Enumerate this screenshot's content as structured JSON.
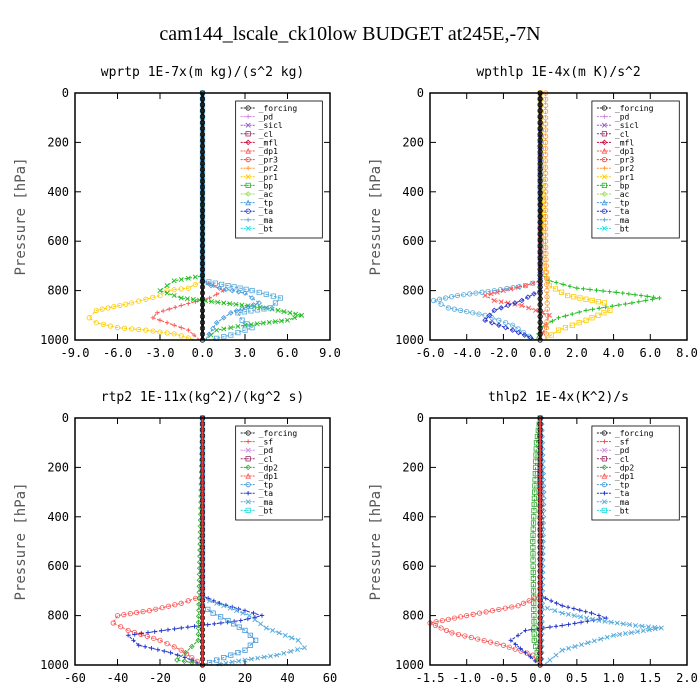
{
  "title": "cam144_lscale_ck10low  BUDGET at245E,-7N",
  "colors": {
    "_forcing": "#222222",
    "_pd": "#cc88dd",
    "_sicl": "#9955cc",
    "_cl": "#993366",
    "_mfl": "#cc0033",
    "_dp1": "#ff5555",
    "_pr3": "#ee4444",
    "_pr2": "#ff9933",
    "_pr1": "#ffcc00",
    "_bp": "#22bb22",
    "_ac": "#99dd55",
    "_tp": "#4499dd",
    "_ta": "#2233cc",
    "_ma": "#55aadd",
    "_bt": "#22dddd",
    "_sf": "#ff4444",
    "_dp2": "#33aa33"
  },
  "chart_data": [
    {
      "type": "line",
      "title": "wprtp  1E-7x(m kg)/(s^2 kg)",
      "ylabel": "Pressure [hPa]",
      "xlim": [
        -9,
        9
      ],
      "ylim": [
        1000,
        0
      ],
      "xticks": [
        "-9.0",
        "-6.0",
        "-3.0",
        "0.0",
        "3.0",
        "6.0",
        "9.0"
      ],
      "yticks": [
        "0",
        "200",
        "400",
        "600",
        "800",
        "1000"
      ],
      "legend": [
        "_forcing",
        "_pd",
        "_sicl",
        "_cl",
        "_mfl",
        "_dp1",
        "_pr3",
        "_pr2",
        "_pr1",
        "_bp",
        "_ac",
        "_tp",
        "_ta",
        "_ma",
        "_bt"
      ],
      "series": [
        {
          "name": "_pr1",
          "x": [
            0,
            0,
            -1.0,
            -2.5,
            -3.0,
            -5.0,
            -7.5,
            -8.0,
            -7.5,
            -6.0,
            -4.0,
            -2.0,
            -0.5
          ],
          "y": [
            0,
            760,
            790,
            800,
            820,
            850,
            880,
            910,
            930,
            950,
            960,
            975,
            1000
          ]
        },
        {
          "name": "_dp1",
          "x": [
            0,
            0,
            0.8,
            1.5,
            0.5,
            -1.5,
            -3.2,
            -3.5,
            -2.5,
            -1.0,
            -0.2
          ],
          "y": [
            0,
            760,
            780,
            800,
            830,
            860,
            890,
            910,
            930,
            960,
            1000
          ]
        },
        {
          "name": "_bp",
          "x": [
            0,
            0,
            -2.0,
            -3.0,
            -1.5,
            1.5,
            4.5,
            7.0,
            6.0,
            3.0,
            1.0,
            0.2
          ],
          "y": [
            0,
            740,
            760,
            800,
            830,
            850,
            870,
            900,
            920,
            940,
            960,
            1000
          ]
        },
        {
          "name": "_ma",
          "x": [
            0,
            0,
            1.8,
            3.5,
            5.5,
            4.8,
            2.5,
            2.8,
            3.5,
            2.0,
            0.5
          ],
          "y": [
            0,
            760,
            780,
            800,
            830,
            870,
            890,
            920,
            950,
            980,
            1000
          ]
        },
        {
          "name": "_tp",
          "x": [
            0,
            0,
            1.2,
            3.0,
            4.0,
            2.0,
            1.0,
            0.2
          ],
          "y": [
            0,
            770,
            790,
            810,
            850,
            890,
            930,
            1000
          ]
        },
        {
          "name": "_forcing",
          "x": [
            0,
            0
          ],
          "y": [
            0,
            1000
          ]
        }
      ]
    },
    {
      "type": "line",
      "title": "wpthlp  1E-4x(m K)/s^2",
      "ylabel": "Pressure [hPa]",
      "xlim": [
        -6,
        8
      ],
      "ylim": [
        1000,
        0
      ],
      "xticks": [
        "-6.0",
        "-4.0",
        "-2.0",
        "0.0",
        "2.0",
        "4.0",
        "6.0",
        "8.0"
      ],
      "yticks": [
        "0",
        "200",
        "400",
        "600",
        "800",
        "1000"
      ],
      "legend": [
        "_forcing",
        "_pd",
        "_sicl",
        "_cl",
        "_mfl",
        "_dp1",
        "_pr3",
        "_pr2",
        "_pr1",
        "_bp",
        "_ac",
        "_tp",
        "_ta",
        "_ma",
        "_bt"
      ],
      "series": [
        {
          "name": "_ma",
          "x": [
            0,
            0,
            -0.8,
            -2.5,
            -4.5,
            -5.8,
            -5.0,
            -3.0,
            -1.5,
            -0.3
          ],
          "y": [
            0,
            760,
            780,
            800,
            820,
            840,
            870,
            900,
            940,
            1000
          ]
        },
        {
          "name": "_bp",
          "x": [
            0,
            0,
            0.5,
            2.0,
            4.5,
            6.5,
            5.0,
            2.5,
            1.0,
            0.0,
            -0.2
          ],
          "y": [
            0,
            730,
            760,
            790,
            810,
            830,
            850,
            880,
            910,
            950,
            1000
          ]
        },
        {
          "name": "_dp1",
          "x": [
            0,
            0,
            -0.8,
            -2.0,
            -3.0,
            -2.5,
            -1.0,
            0.5,
            0.3,
            0.0
          ],
          "y": [
            0,
            760,
            780,
            800,
            820,
            840,
            860,
            900,
            940,
            1000
          ]
        },
        {
          "name": "_pr1",
          "x": [
            0,
            0.2,
            0.5,
            1.5,
            3.5,
            3.8,
            2.5,
            1.0,
            0.2
          ],
          "y": [
            0,
            700,
            780,
            820,
            850,
            880,
            920,
            960,
            1000
          ]
        },
        {
          "name": "_ta",
          "x": [
            0,
            0,
            -1.0,
            -2.5,
            -3.0,
            -1.5,
            -0.2
          ],
          "y": [
            0,
            800,
            840,
            880,
            920,
            960,
            1000
          ]
        },
        {
          "name": "_forcing",
          "x": [
            0,
            0
          ],
          "y": [
            0,
            1000
          ]
        },
        {
          "name": "_pr2",
          "x": [
            0.3,
            0.3,
            0.4,
            0.3
          ],
          "y": [
            0,
            600,
            900,
            1000
          ]
        }
      ]
    },
    {
      "type": "line",
      "title": "rtp2  1E-11x(kg^2)/(kg^2 s)",
      "ylabel": "Pressure [hPa]",
      "xlim": [
        -60,
        60
      ],
      "ylim": [
        1000,
        0
      ],
      "xticks": [
        "-60",
        "-40",
        "-20",
        "0",
        "20",
        "40",
        "60"
      ],
      "yticks": [
        "0",
        "200",
        "400",
        "600",
        "800",
        "1000"
      ],
      "legend": [
        "_forcing",
        "_sf",
        "_pd",
        "_cl",
        "_dp2",
        "_dp1",
        "_tp",
        "_ta",
        "_ma",
        "_bt"
      ],
      "series": [
        {
          "name": "_dp1",
          "x": [
            0,
            0,
            -10,
            -25,
            -40,
            -42,
            -35,
            -20,
            -10,
            -5,
            0
          ],
          "y": [
            0,
            720,
            750,
            780,
            800,
            830,
            860,
            900,
            940,
            970,
            1000
          ]
        },
        {
          "name": "_ta",
          "x": [
            0,
            0,
            8,
            20,
            28,
            18,
            -10,
            -35,
            -30,
            -15,
            -5,
            0
          ],
          "y": [
            0,
            720,
            750,
            780,
            800,
            820,
            850,
            880,
            920,
            950,
            980,
            1000
          ]
        },
        {
          "name": "_ma",
          "x": [
            0,
            0,
            10,
            22,
            30,
            45,
            48,
            35,
            20,
            5
          ],
          "y": [
            0,
            730,
            760,
            800,
            850,
            900,
            930,
            960,
            980,
            1000
          ]
        },
        {
          "name": "_tp",
          "x": [
            0,
            0,
            5,
            12,
            20,
            25,
            20,
            10,
            0
          ],
          "y": [
            0,
            760,
            790,
            820,
            860,
            900,
            940,
            970,
            1000
          ]
        },
        {
          "name": "_dp2",
          "x": [
            0,
            -2,
            -8,
            -12,
            -5,
            0,
            0
          ],
          "y": [
            0,
            900,
            950,
            980,
            990,
            1000,
            1000
          ]
        },
        {
          "name": "_forcing",
          "x": [
            0,
            0
          ],
          "y": [
            0,
            1000
          ]
        },
        {
          "name": "_sf",
          "x": [
            0,
            0
          ],
          "y": [
            0,
            1000
          ]
        }
      ]
    },
    {
      "type": "line",
      "title": "thlp2  1E-4x(K^2)/s",
      "ylabel": "Pressure [hPa]",
      "xlim": [
        -1.5,
        2.0
      ],
      "ylim": [
        1000,
        0
      ],
      "xticks": [
        "-1.5",
        "-1.0",
        "-0.5",
        "0.0",
        "0.5",
        "1.0",
        "1.5",
        "2.0"
      ],
      "yticks": [
        "0",
        "200",
        "400",
        "600",
        "800",
        "1000"
      ],
      "legend": [
        "_forcing",
        "_sf",
        "_pd",
        "_cl",
        "_dp2",
        "_dp1",
        "_tp",
        "_ta",
        "_ma",
        "_bt"
      ],
      "series": [
        {
          "name": "_dp1",
          "x": [
            0,
            0,
            -0.3,
            -1.0,
            -1.5,
            -1.2,
            -0.5,
            -0.1,
            0
          ],
          "y": [
            0,
            720,
            760,
            800,
            830,
            870,
            920,
            960,
            1000
          ]
        },
        {
          "name": "_ta",
          "x": [
            0,
            0,
            0.3,
            0.7,
            0.9,
            0.3,
            -0.2,
            -0.4,
            -0.2,
            0
          ],
          "y": [
            0,
            720,
            760,
            790,
            810,
            840,
            860,
            900,
            950,
            1000
          ]
        },
        {
          "name": "_ma",
          "x": [
            0,
            0,
            0.3,
            0.8,
            1.3,
            1.65,
            1.0,
            0.3,
            0.05
          ],
          "y": [
            0,
            760,
            790,
            820,
            840,
            850,
            880,
            940,
            1000
          ]
        },
        {
          "name": "_dp2",
          "x": [
            0,
            -0.05,
            -0.1,
            -0.08,
            0
          ],
          "y": [
            0,
            100,
            500,
            900,
            1000
          ]
        },
        {
          "name": "_tp",
          "x": [
            0.02,
            0.05,
            0.03,
            0.02
          ],
          "y": [
            0,
            300,
            700,
            1000
          ]
        },
        {
          "name": "_forcing",
          "x": [
            0,
            0
          ],
          "y": [
            0,
            1000
          ]
        },
        {
          "name": "_sf",
          "x": [
            0,
            0
          ],
          "y": [
            0,
            1000
          ]
        }
      ]
    }
  ]
}
